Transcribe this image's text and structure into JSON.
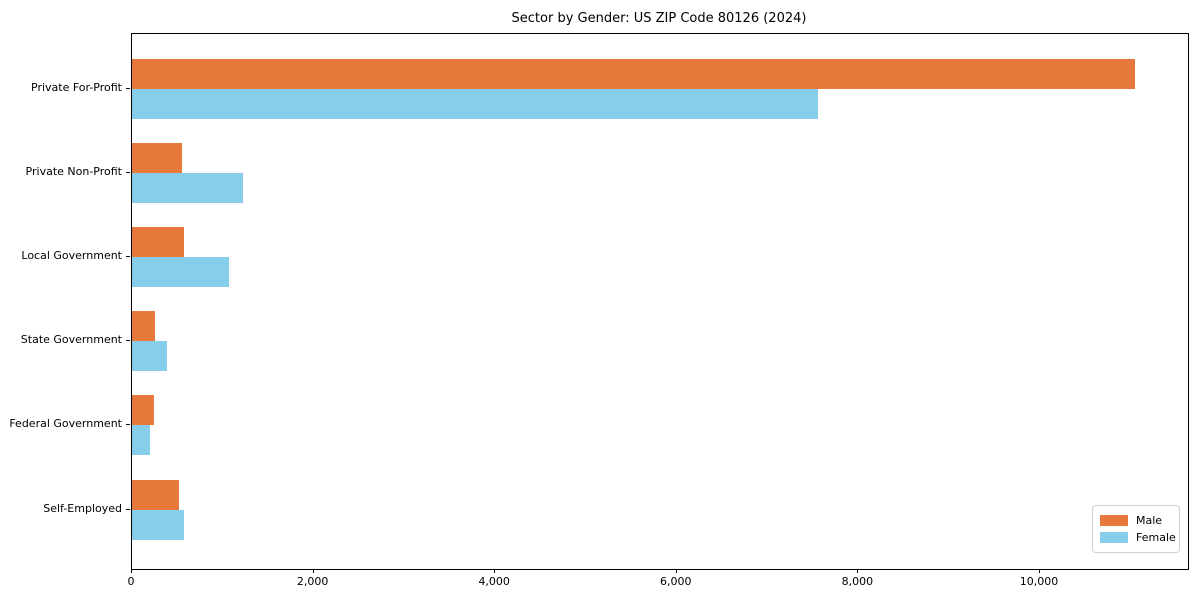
{
  "title": "Sector by Gender: US ZIP Code 80126 (2024)",
  "chart_data": {
    "type": "bar",
    "orientation": "horizontal",
    "title": "Sector by Gender: US ZIP Code 80126 (2024)",
    "categories": [
      "Private For-Profit",
      "Private Non-Profit",
      "Local Government",
      "State Government",
      "Federal Government",
      "Self-Employed"
    ],
    "series": [
      {
        "name": "Male",
        "color": "#e8793c",
        "values": [
          11050,
          550,
          575,
          250,
          240,
          520
        ]
      },
      {
        "name": "Female",
        "color": "#87ceeb",
        "values": [
          7550,
          1220,
          1070,
          385,
          195,
          570
        ]
      }
    ],
    "xticks": [
      0,
      2000,
      4000,
      6000,
      8000,
      10000
    ],
    "xtick_labels": [
      "0",
      "2,000",
      "4,000",
      "6,000",
      "8,000",
      "10,000"
    ],
    "xlim": [
      0,
      11630
    ],
    "xlabel": "",
    "ylabel": "",
    "grid": false,
    "legend_position": "lower right"
  },
  "colors": {
    "male": "#e8793c",
    "female": "#87ceeb",
    "spine": "#000000",
    "legend_border": "#d0d0d0",
    "background": "#ffffff"
  }
}
